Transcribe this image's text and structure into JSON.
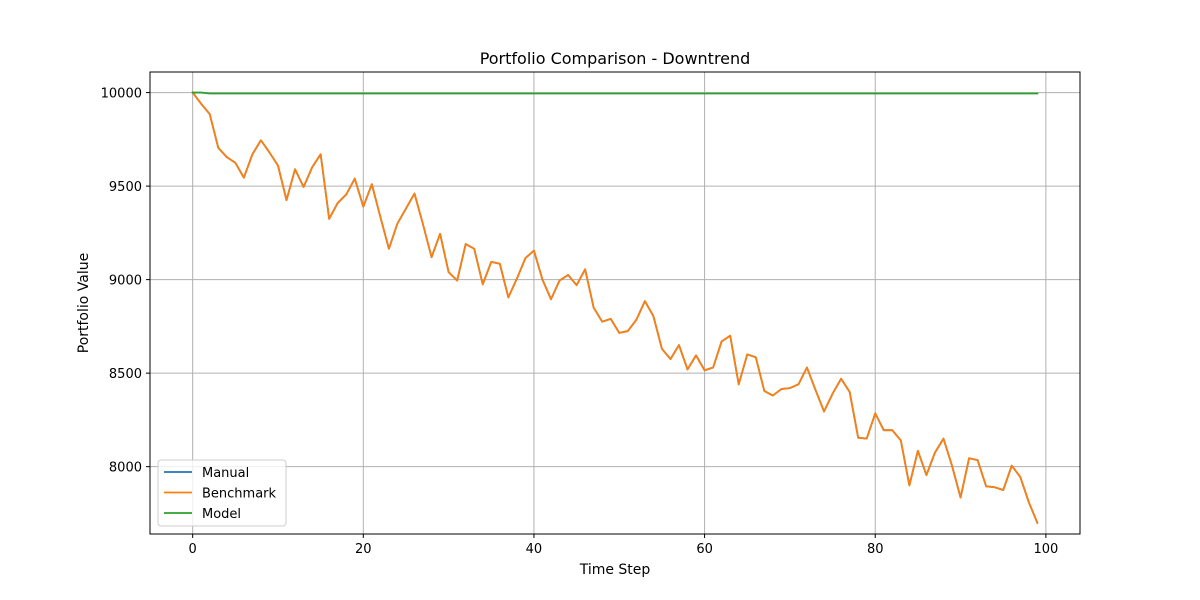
{
  "chart_data": {
    "type": "line",
    "title": "Portfolio Comparison - Downtrend",
    "xlabel": "Time Step",
    "ylabel": "Portfolio Value",
    "xlim": [
      -5,
      104
    ],
    "ylim": [
      7640,
      10110
    ],
    "xticks": [
      0,
      20,
      40,
      60,
      80,
      100
    ],
    "yticks": [
      8000,
      8500,
      9000,
      9500,
      10000
    ],
    "grid": true,
    "legend_position": "lower-left",
    "x": [
      0,
      1,
      2,
      3,
      4,
      5,
      6,
      7,
      8,
      9,
      10,
      11,
      12,
      13,
      14,
      15,
      16,
      17,
      18,
      19,
      20,
      21,
      22,
      23,
      24,
      25,
      26,
      27,
      28,
      29,
      30,
      31,
      32,
      33,
      34,
      35,
      36,
      37,
      38,
      39,
      40,
      41,
      42,
      43,
      44,
      45,
      46,
      47,
      48,
      49,
      50,
      51,
      52,
      53,
      54,
      55,
      56,
      57,
      58,
      59,
      60,
      61,
      62,
      63,
      64,
      65,
      66,
      67,
      68,
      69,
      70,
      71,
      72,
      73,
      74,
      75,
      76,
      77,
      78,
      79,
      80,
      81,
      82,
      83,
      84,
      85,
      86,
      87,
      88,
      89,
      90,
      91,
      92,
      93,
      94,
      95,
      96,
      97,
      98,
      99
    ],
    "series": [
      {
        "name": "Manual",
        "color": "#1f77b4",
        "values": [
          10000,
          9940,
          9885,
          9705,
          9655,
          9625,
          9545,
          9670,
          9745,
          9680,
          9610,
          9425,
          9590,
          9495,
          9600,
          9670,
          9325,
          9410,
          9455,
          9540,
          9390,
          9510,
          9335,
          9165,
          9300,
          9380,
          9460,
          9295,
          9120,
          9245,
          9040,
          8995,
          9190,
          9165,
          8975,
          9095,
          9085,
          8905,
          9005,
          9115,
          9155,
          9000,
          8895,
          8995,
          9025,
          8970,
          9055,
          8850,
          8775,
          8790,
          8715,
          8725,
          8785,
          8885,
          8805,
          8630,
          8575,
          8650,
          8520,
          8595,
          8515,
          8530,
          8670,
          8700,
          8440,
          8600,
          8585,
          8405,
          8380,
          8415,
          8420,
          8440,
          8530,
          8410,
          8295,
          8390,
          8470,
          8400,
          8155,
          8150,
          8285,
          8195,
          8195,
          8140,
          7900,
          8085,
          7955,
          8075,
          8150,
          8005,
          7835,
          8045,
          8035,
          7895,
          7890,
          7875,
          8005,
          7945,
          7810,
          7700
        ]
      },
      {
        "name": "Benchmark",
        "color": "#ff7f0e",
        "values": [
          10000,
          9940,
          9885,
          9705,
          9655,
          9625,
          9545,
          9670,
          9745,
          9680,
          9610,
          9425,
          9590,
          9495,
          9600,
          9670,
          9325,
          9410,
          9455,
          9540,
          9390,
          9510,
          9335,
          9165,
          9300,
          9380,
          9460,
          9295,
          9120,
          9245,
          9040,
          8995,
          9190,
          9165,
          8975,
          9095,
          9085,
          8905,
          9005,
          9115,
          9155,
          9000,
          8895,
          8995,
          9025,
          8970,
          9055,
          8850,
          8775,
          8790,
          8715,
          8725,
          8785,
          8885,
          8805,
          8630,
          8575,
          8650,
          8520,
          8595,
          8515,
          8530,
          8670,
          8700,
          8440,
          8600,
          8585,
          8405,
          8380,
          8415,
          8420,
          8440,
          8530,
          8410,
          8295,
          8390,
          8470,
          8400,
          8155,
          8150,
          8285,
          8195,
          8195,
          8140,
          7900,
          8085,
          7955,
          8075,
          8150,
          8005,
          7835,
          8045,
          8035,
          7895,
          7890,
          7875,
          8005,
          7945,
          7810,
          7700
        ]
      },
      {
        "name": "Model",
        "color": "#2ca02c",
        "values": [
          10000,
          10000,
          9995,
          9995,
          9995,
          9995,
          9995,
          9995,
          9995,
          9995,
          9995,
          9995,
          9995,
          9995,
          9995,
          9995,
          9995,
          9995,
          9995,
          9995,
          9995,
          9995,
          9995,
          9995,
          9995,
          9995,
          9995,
          9995,
          9995,
          9995,
          9995,
          9995,
          9995,
          9995,
          9995,
          9995,
          9995,
          9995,
          9995,
          9995,
          9995,
          9995,
          9995,
          9995,
          9995,
          9995,
          9995,
          9995,
          9995,
          9995,
          9995,
          9995,
          9995,
          9995,
          9995,
          9995,
          9995,
          9995,
          9995,
          9995,
          9995,
          9995,
          9995,
          9995,
          9995,
          9995,
          9995,
          9995,
          9995,
          9995,
          9995,
          9995,
          9995,
          9995,
          9995,
          9995,
          9995,
          9995,
          9995,
          9995,
          9995,
          9995,
          9995,
          9995,
          9995,
          9995,
          9995,
          9995,
          9995,
          9995,
          9995,
          9995,
          9995,
          9995,
          9995,
          9995,
          9995,
          9995,
          9995,
          9995
        ]
      }
    ]
  }
}
